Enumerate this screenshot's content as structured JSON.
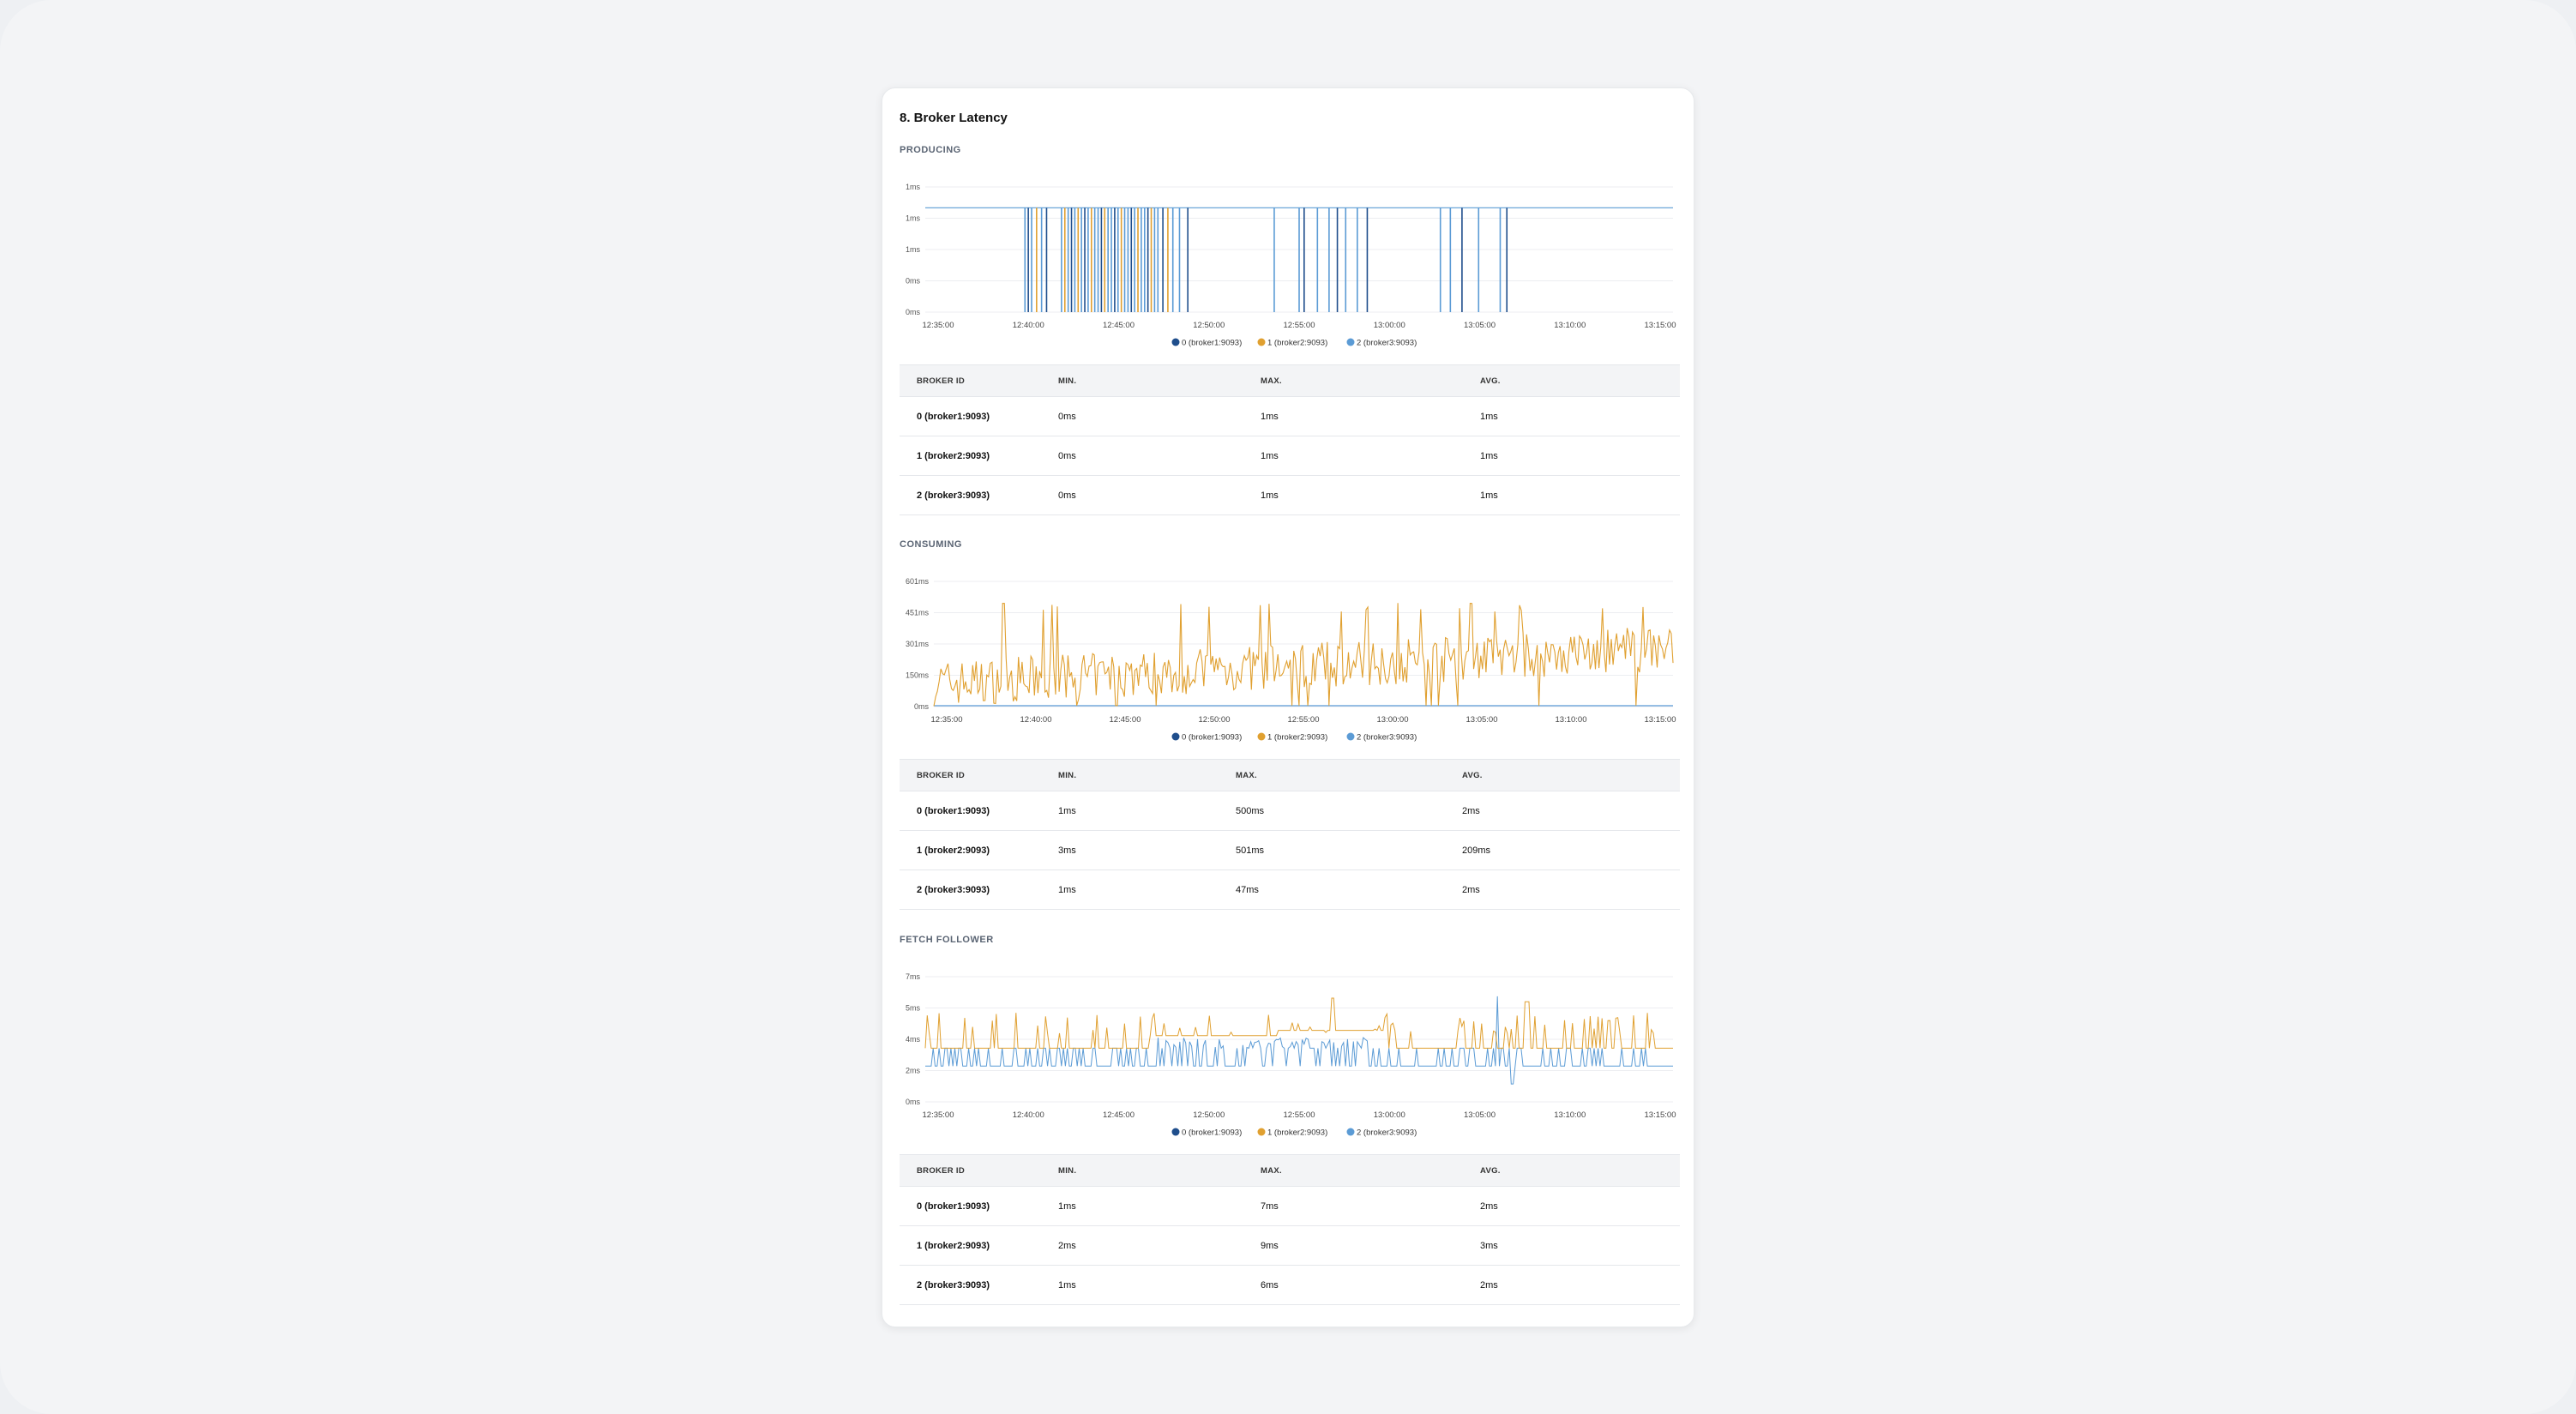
{
  "card_title": "8. Broker Latency",
  "colors": {
    "broker0": "#1f4e8c",
    "broker1": "#e0a030",
    "broker2": "#5b9bd5"
  },
  "legend": [
    "0 (broker1:9093)",
    "1 (broker2:9093)",
    "2 (broker3:9093)"
  ],
  "table_headers": [
    "BROKER ID",
    "MIN.",
    "MAX.",
    "AVG."
  ],
  "sections": [
    {
      "label": "PRODUCING",
      "rows": [
        [
          "0 (broker1:9093)",
          "0ms",
          "1ms",
          "1ms"
        ],
        [
          "1 (broker2:9093)",
          "0ms",
          "1ms",
          "1ms"
        ],
        [
          "2 (broker3:9093)",
          "0ms",
          "1ms",
          "1ms"
        ]
      ]
    },
    {
      "label": "CONSUMING",
      "rows": [
        [
          "0 (broker1:9093)",
          "1ms",
          "500ms",
          "2ms"
        ],
        [
          "1 (broker2:9093)",
          "3ms",
          "501ms",
          "209ms"
        ],
        [
          "2 (broker3:9093)",
          "1ms",
          "47ms",
          "2ms"
        ]
      ]
    },
    {
      "label": "FETCH FOLLOWER",
      "rows": [
        [
          "0 (broker1:9093)",
          "1ms",
          "7ms",
          "2ms"
        ],
        [
          "1 (broker2:9093)",
          "2ms",
          "9ms",
          "3ms"
        ],
        [
          "2 (broker3:9093)",
          "1ms",
          "6ms",
          "2ms"
        ]
      ]
    }
  ],
  "chart_data": [
    {
      "type": "line",
      "y_ticks": [
        "1ms",
        "1ms",
        "1ms",
        "0ms",
        "0ms"
      ],
      "x_ticks": [
        "12:35:00",
        "12:40:00",
        "12:45:00",
        "12:50:00",
        "12:55:00",
        "13:00:00",
        "13:05:00",
        "13:10:00",
        "13:15:00"
      ],
      "ylim": [
        0,
        1.2
      ],
      "series_legend": [
        "0 (broker1:9093)",
        "1 (broker2:9093)",
        "2 (broker3:9093)"
      ],
      "baseline": 1,
      "drops": [
        {
          "t": 6.0,
          "s": 2
        },
        {
          "t": 6.2,
          "s": 0
        },
        {
          "t": 6.4,
          "s": 2
        },
        {
          "t": 6.7,
          "s": 1
        },
        {
          "t": 7.0,
          "s": 2
        },
        {
          "t": 7.3,
          "s": 0
        },
        {
          "t": 8.2,
          "s": 2
        },
        {
          "t": 8.4,
          "s": 1
        },
        {
          "t": 8.6,
          "s": 2
        },
        {
          "t": 8.8,
          "s": 0
        },
        {
          "t": 9.0,
          "s": 2
        },
        {
          "t": 9.2,
          "s": 1
        },
        {
          "t": 9.4,
          "s": 2
        },
        {
          "t": 9.6,
          "s": 0
        },
        {
          "t": 9.8,
          "s": 2
        },
        {
          "t": 10.0,
          "s": 1
        },
        {
          "t": 10.2,
          "s": 2
        },
        {
          "t": 10.4,
          "s": 2
        },
        {
          "t": 10.6,
          "s": 0
        },
        {
          "t": 10.8,
          "s": 1
        },
        {
          "t": 11.0,
          "s": 2
        },
        {
          "t": 11.2,
          "s": 2
        },
        {
          "t": 11.4,
          "s": 0
        },
        {
          "t": 11.6,
          "s": 2
        },
        {
          "t": 11.8,
          "s": 1
        },
        {
          "t": 12.0,
          "s": 2
        },
        {
          "t": 12.2,
          "s": 2
        },
        {
          "t": 12.4,
          "s": 0
        },
        {
          "t": 12.6,
          "s": 2
        },
        {
          "t": 12.8,
          "s": 1
        },
        {
          "t": 13.0,
          "s": 2
        },
        {
          "t": 13.2,
          "s": 2
        },
        {
          "t": 13.4,
          "s": 0
        },
        {
          "t": 13.6,
          "s": 1
        },
        {
          "t": 13.8,
          "s": 2
        },
        {
          "t": 14.0,
          "s": 2
        },
        {
          "t": 14.3,
          "s": 0
        },
        {
          "t": 14.6,
          "s": 1
        },
        {
          "t": 14.9,
          "s": 2
        },
        {
          "t": 15.3,
          "s": 2
        },
        {
          "t": 15.8,
          "s": 0
        },
        {
          "t": 21.0,
          "s": 2
        },
        {
          "t": 22.5,
          "s": 2
        },
        {
          "t": 22.8,
          "s": 0
        },
        {
          "t": 23.6,
          "s": 2
        },
        {
          "t": 24.3,
          "s": 2
        },
        {
          "t": 24.8,
          "s": 0
        },
        {
          "t": 25.3,
          "s": 2
        },
        {
          "t": 26.0,
          "s": 2
        },
        {
          "t": 26.6,
          "s": 0
        },
        {
          "t": 31.0,
          "s": 2
        },
        {
          "t": 31.6,
          "s": 2
        },
        {
          "t": 32.3,
          "s": 0
        },
        {
          "t": 33.3,
          "s": 2
        },
        {
          "t": 34.6,
          "s": 2
        },
        {
          "t": 35.0,
          "s": 0
        }
      ]
    },
    {
      "type": "line",
      "y_ticks": [
        "601ms",
        "451ms",
        "301ms",
        "150ms",
        "0ms"
      ],
      "x_ticks": [
        "12:35:00",
        "12:40:00",
        "12:45:00",
        "12:50:00",
        "12:55:00",
        "13:00:00",
        "13:05:00",
        "13:10:00",
        "13:15:00"
      ],
      "ylim": [
        0,
        601
      ],
      "series_legend": [
        "0 (broker1:9093)",
        "1 (broker2:9093)",
        "2 (broker3:9093)"
      ]
    },
    {
      "type": "line",
      "y_ticks": [
        "7ms",
        "5ms",
        "4ms",
        "2ms",
        "0ms"
      ],
      "x_ticks": [
        "12:35:00",
        "12:40:00",
        "12:45:00",
        "12:50:00",
        "12:55:00",
        "13:00:00",
        "13:05:00",
        "13:10:00",
        "13:15:00"
      ],
      "ylim": [
        0,
        7
      ],
      "series_legend": [
        "0 (broker1:9093)",
        "1 (broker2:9093)",
        "2 (broker3:9093)"
      ]
    }
  ]
}
